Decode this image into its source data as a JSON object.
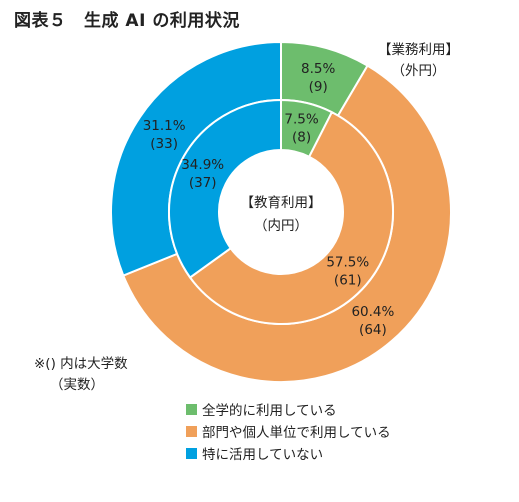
{
  "title": "図表５　生成 AI の利用状況",
  "note": {
    "line1": "※() 内は大学数",
    "line2": "（実数）"
  },
  "chart_data": {
    "type": "pie",
    "subtype": "donut",
    "categories": [
      "全学的に利用している",
      "部門や個人単位で利用している",
      "特に活用していない"
    ],
    "colors": [
      "#6dbd6d",
      "#f0a05a",
      "#00a0e0"
    ],
    "series": [
      {
        "name": "【業務利用】",
        "sub": "（外円）",
        "ring": "outer",
        "values": [
          8.5,
          60.4,
          31.1
        ],
        "counts": [
          9,
          64,
          33
        ],
        "labels": [
          [
            "8.5%",
            "(9)"
          ],
          [
            "60.4%",
            "(64)"
          ],
          [
            "31.1%",
            "(33)"
          ]
        ]
      },
      {
        "name": "【教育利用】",
        "sub": "（内円）",
        "ring": "inner",
        "values": [
          7.5,
          57.5,
          34.9
        ],
        "counts": [
          8,
          61,
          37
        ],
        "labels": [
          [
            "7.5%",
            "(8)"
          ],
          [
            "57.5%",
            "(61)"
          ],
          [
            "34.9%",
            "(37)"
          ]
        ]
      }
    ],
    "legend_position": "bottom"
  }
}
